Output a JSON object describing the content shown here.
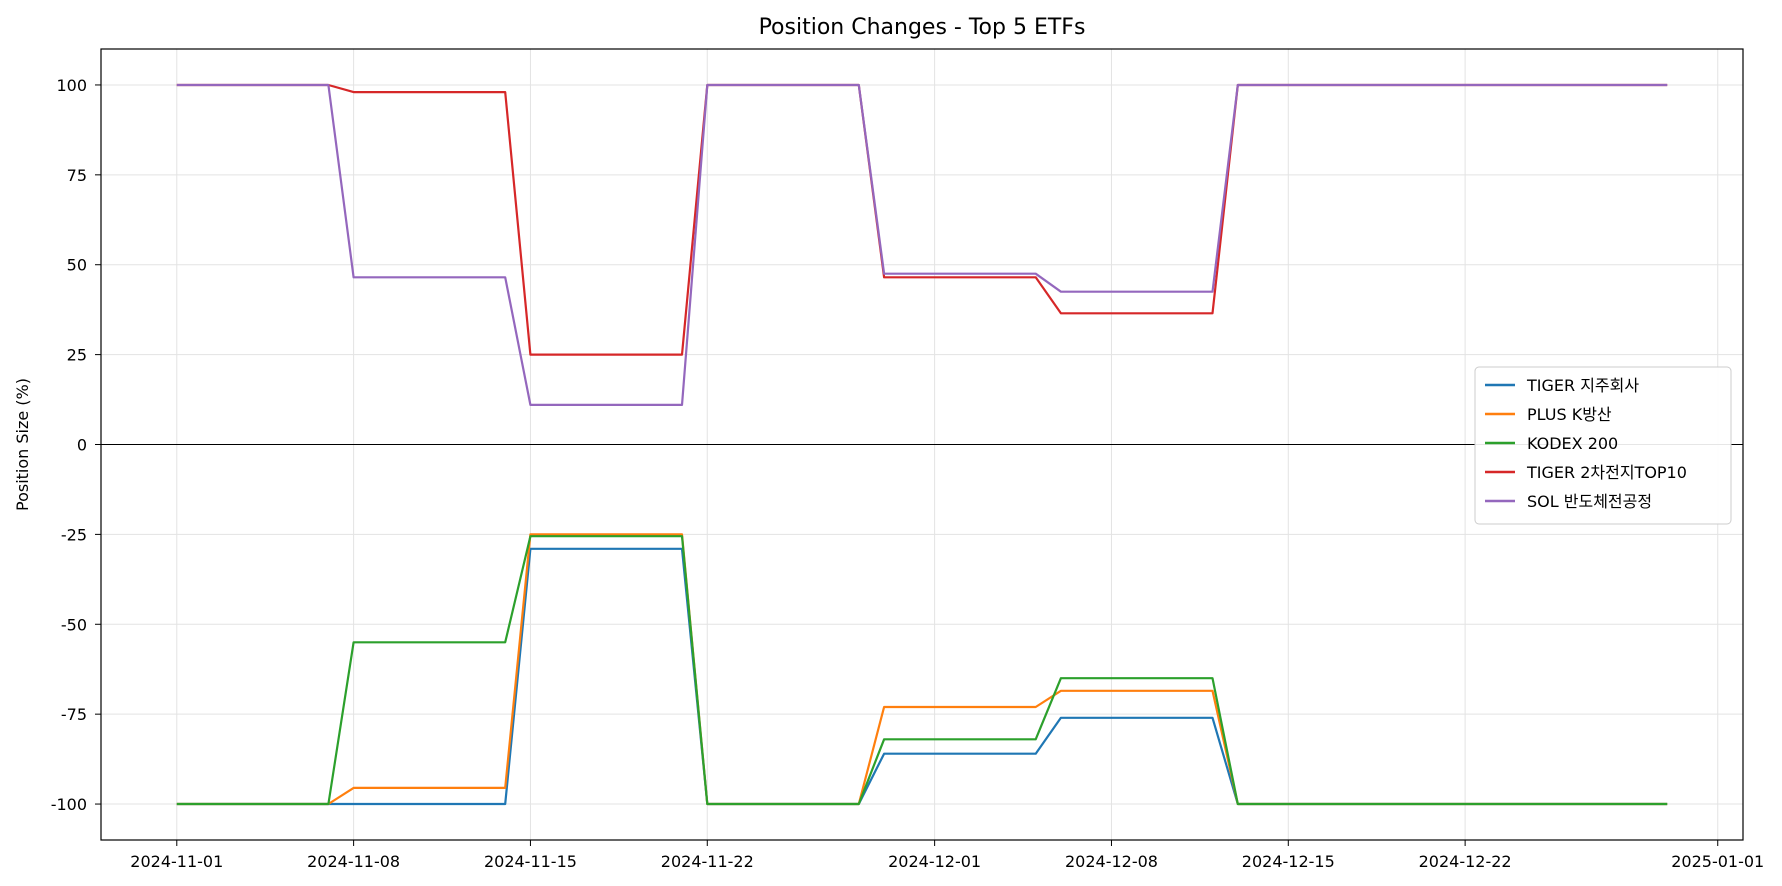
{
  "chart_data": {
    "type": "line",
    "title": "Position Changes - Top 5 ETFs",
    "xlabel": "",
    "ylabel": "Position Size (%)",
    "xlim": [
      "2024-10-29",
      "2025-01-02"
    ],
    "ylim": [
      -110,
      110
    ],
    "xticks": [
      "2024-11-01",
      "2024-11-08",
      "2024-11-15",
      "2024-11-22",
      "2024-12-01",
      "2024-12-08",
      "2024-12-15",
      "2024-12-22",
      "2025-01-01"
    ],
    "yticks": [
      100,
      75,
      50,
      25,
      0,
      -25,
      -50,
      -75,
      -100
    ],
    "zero_line": true,
    "grid": true,
    "legend_position": "center-right",
    "series": [
      {
        "name": "TIGER 지주회사",
        "color": "#1f77b4",
        "x": [
          "2024-11-01",
          "2024-11-07",
          "2024-11-08",
          "2024-11-14",
          "2024-11-15",
          "2024-11-21",
          "2024-11-22",
          "2024-11-28",
          "2024-11-29",
          "2024-12-05",
          "2024-12-06",
          "2024-12-12",
          "2024-12-13",
          "2024-12-30"
        ],
        "y": [
          -100,
          -100,
          -100,
          -100,
          -29,
          -29,
          -100,
          -100,
          -86,
          -86,
          -76,
          -76,
          -100,
          -100
        ]
      },
      {
        "name": "PLUS K방산",
        "color": "#ff7f0e",
        "x": [
          "2024-11-01",
          "2024-11-07",
          "2024-11-08",
          "2024-11-14",
          "2024-11-15",
          "2024-11-21",
          "2024-11-22",
          "2024-11-28",
          "2024-11-29",
          "2024-12-05",
          "2024-12-06",
          "2024-12-12",
          "2024-12-13",
          "2024-12-30"
        ],
        "y": [
          -100,
          -100,
          -95.5,
          -95.5,
          -25,
          -25,
          -100,
          -100,
          -73,
          -73,
          -68.5,
          -68.5,
          -100,
          -100
        ]
      },
      {
        "name": "KODEX 200",
        "color": "#2ca02c",
        "x": [
          "2024-11-01",
          "2024-11-07",
          "2024-11-08",
          "2024-11-14",
          "2024-11-15",
          "2024-11-21",
          "2024-11-22",
          "2024-11-28",
          "2024-11-29",
          "2024-12-05",
          "2024-12-06",
          "2024-12-12",
          "2024-12-13",
          "2024-12-30"
        ],
        "y": [
          -100,
          -100,
          -55,
          -55,
          -25.5,
          -25.5,
          -100,
          -100,
          -82,
          -82,
          -65,
          -65,
          -100,
          -100
        ]
      },
      {
        "name": "TIGER 2차전지TOP10",
        "color": "#d62728",
        "x": [
          "2024-11-01",
          "2024-11-07",
          "2024-11-08",
          "2024-11-14",
          "2024-11-15",
          "2024-11-21",
          "2024-11-22",
          "2024-11-28",
          "2024-11-29",
          "2024-12-05",
          "2024-12-06",
          "2024-12-12",
          "2024-12-13",
          "2024-12-30"
        ],
        "y": [
          100,
          100,
          98,
          98,
          25,
          25,
          100,
          100,
          46.5,
          46.5,
          36.5,
          36.5,
          100,
          100
        ]
      },
      {
        "name": "SOL 반도체전공정",
        "color": "#9467bd",
        "x": [
          "2024-11-01",
          "2024-11-07",
          "2024-11-08",
          "2024-11-14",
          "2024-11-15",
          "2024-11-21",
          "2024-11-22",
          "2024-11-28",
          "2024-11-29",
          "2024-12-05",
          "2024-12-06",
          "2024-12-12",
          "2024-12-13",
          "2024-12-30"
        ],
        "y": [
          100,
          100,
          46.5,
          46.5,
          11,
          11,
          100,
          100,
          47.5,
          47.5,
          42.5,
          42.5,
          100,
          100
        ]
      }
    ]
  }
}
